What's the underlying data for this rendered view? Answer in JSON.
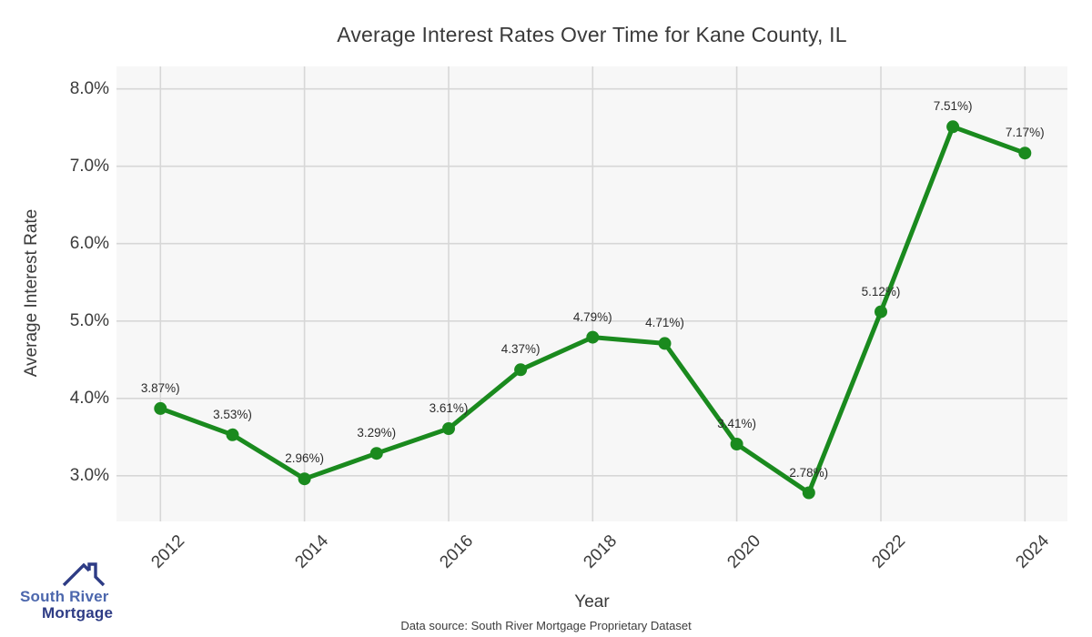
{
  "title": "Average Interest Rates Over Time for Kane County, IL",
  "logo": {
    "line1": "South River",
    "line2": "Mortgage",
    "line1_color": "#4c67ad",
    "line2_color": "#2e3c85",
    "roof_color": "#2e3c85"
  },
  "footer": {
    "caption": "Data source: South River Mortgage Proprietary Dataset"
  },
  "chart_data": {
    "type": "line",
    "title": "Average Interest Rates Over Time for Kane County, IL",
    "xlabel": "Year",
    "ylabel": "Average Interest Rate",
    "x": [
      2012,
      2013,
      2014,
      2015,
      2016,
      2017,
      2018,
      2019,
      2020,
      2021,
      2022,
      2023,
      2024
    ],
    "values": [
      3.87,
      3.53,
      2.96,
      3.29,
      3.61,
      4.37,
      4.79,
      4.71,
      3.41,
      2.78,
      5.12,
      7.51,
      7.17
    ],
    "point_labels": [
      "3.87%)",
      "3.53%)",
      "2.96%)",
      "3.29%)",
      "3.61%)",
      "4.37%)",
      "4.79%)",
      "4.71%)",
      "3.41%)",
      "2.78%)",
      "5.12%)",
      "7.51%)",
      "7.17%)"
    ],
    "xticks": [
      2012,
      2014,
      2016,
      2018,
      2020,
      2022,
      2024
    ],
    "xtick_labels": [
      "2012",
      "2014",
      "2016",
      "2018",
      "2020",
      "2022",
      "2024"
    ],
    "yticks": [
      3,
      4,
      5,
      6,
      7,
      8
    ],
    "ytick_labels": [
      "3.0%",
      "4.0%",
      "5.0%",
      "6.0%",
      "7.0%",
      "8.0%"
    ],
    "xlim": [
      2011.39,
      2024.59
    ],
    "ylim": [
      2.41,
      8.29
    ],
    "grid": true,
    "legend": "none",
    "line_color": "#1a8a1e",
    "marker_color": "#1a8a1e",
    "plot_bg": "#f7f7f7",
    "grid_color": "#d7d7d7",
    "line_width": 5,
    "marker_radius": 7
  }
}
